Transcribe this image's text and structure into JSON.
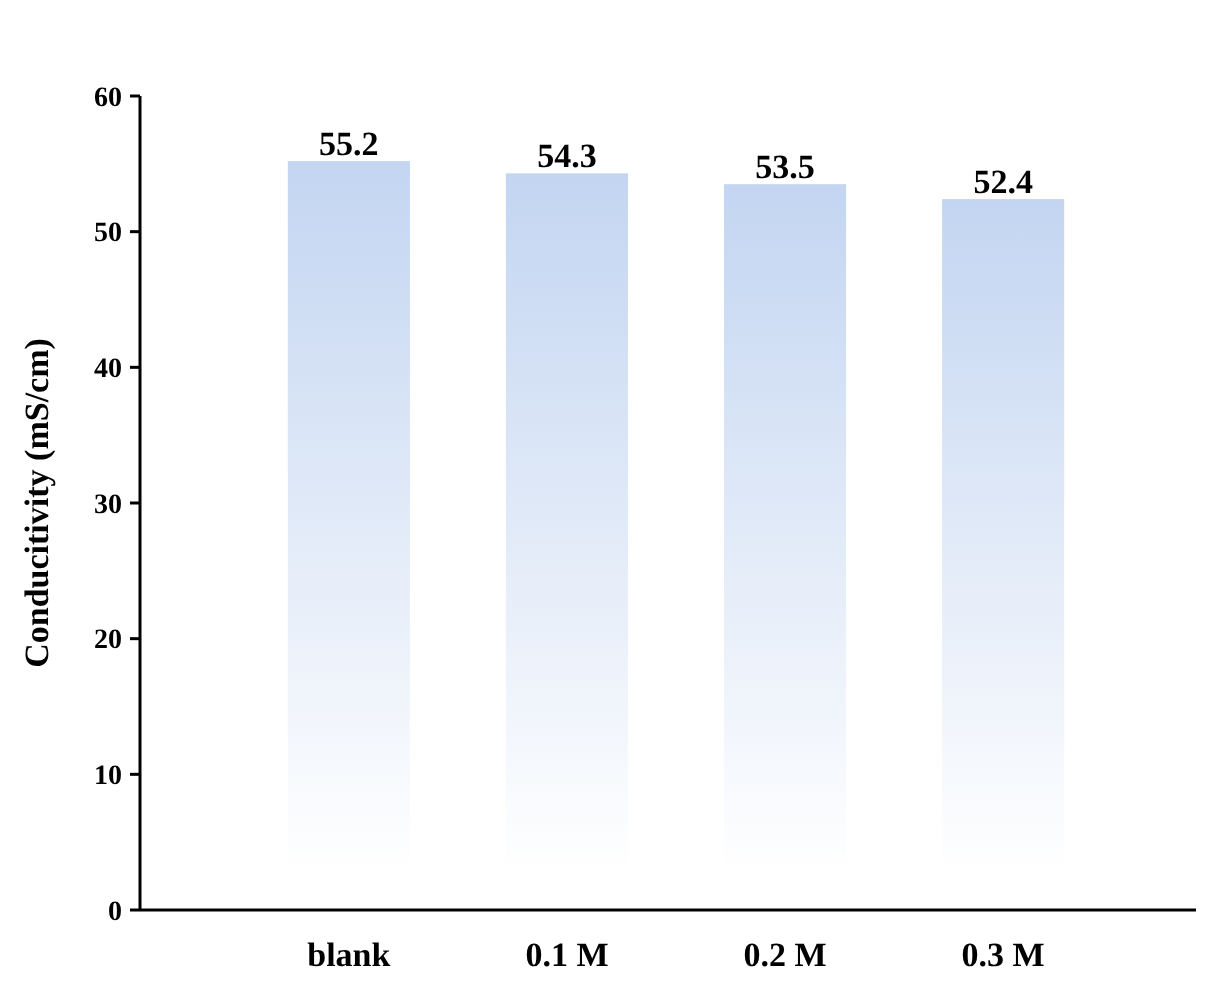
{
  "chart_data": {
    "type": "bar",
    "ylabel": "Conducitivity (mS/cm)",
    "categories": [
      "blank",
      "0.1 M",
      "0.2 M",
      "0.3 M"
    ],
    "values": [
      55.2,
      54.3,
      53.5,
      52.4
    ],
    "color": "#c3d5f1",
    "ylim": [
      0,
      60
    ],
    "yticks": [
      0,
      10,
      20,
      30,
      40,
      50,
      60
    ],
    "data_labels": true
  }
}
